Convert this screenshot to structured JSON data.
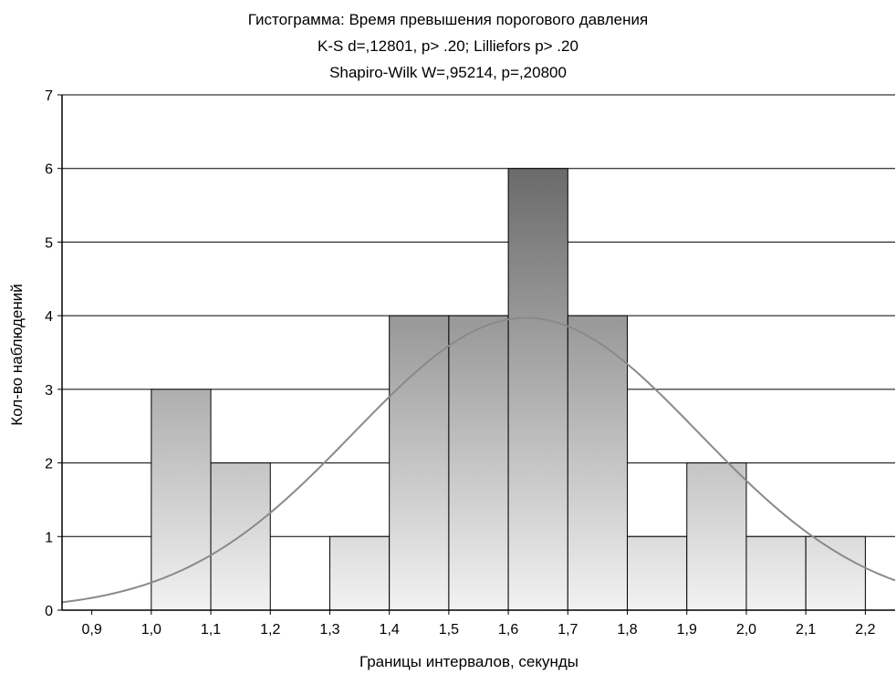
{
  "chart_data": {
    "type": "bar",
    "title_lines": [
      "Гистограмма: Время превышения порогового давления",
      "K-S d=,12801, p> .20; Lilliefors p> .20",
      "Shapiro-Wilk W=,95214, p=,20800"
    ],
    "xlabel": "Границы интервалов, секунды",
    "ylabel": "Кол-во наблюдений",
    "xlim": [
      0.85,
      2.25
    ],
    "ylim": [
      0,
      7
    ],
    "grid": true,
    "x_tick_labels": [
      "0,9",
      "1,0",
      "1,1",
      "1,2",
      "1,3",
      "1,4",
      "1,5",
      "1,6",
      "1,7",
      "1,8",
      "1,9",
      "2,0",
      "2,1",
      "2,2"
    ],
    "y_tick_labels": [
      "0",
      "1",
      "2",
      "3",
      "4",
      "5",
      "6",
      "7"
    ],
    "bins": [
      {
        "from": 1.0,
        "to": 1.1,
        "count": 3
      },
      {
        "from": 1.1,
        "to": 1.2,
        "count": 2
      },
      {
        "from": 1.2,
        "to": 1.3,
        "count": 0
      },
      {
        "from": 1.3,
        "to": 1.4,
        "count": 1
      },
      {
        "from": 1.4,
        "to": 1.5,
        "count": 4
      },
      {
        "from": 1.5,
        "to": 1.6,
        "count": 4
      },
      {
        "from": 1.6,
        "to": 1.7,
        "count": 6
      },
      {
        "from": 1.7,
        "to": 1.8,
        "count": 4
      },
      {
        "from": 1.8,
        "to": 1.9,
        "count": 1
      },
      {
        "from": 1.9,
        "to": 2.0,
        "count": 2
      },
      {
        "from": 2.0,
        "to": 2.1,
        "count": 1
      },
      {
        "from": 2.1,
        "to": 2.2,
        "count": 1
      }
    ],
    "normal_curve": {
      "mean": 1.63,
      "sd": 0.29,
      "peak": 3.97
    },
    "colors": {
      "bar_top": "#6a6a6a",
      "bar_bottom": "#f2f2f2",
      "curve": "#8a8a8a",
      "grid": "#000000"
    }
  }
}
